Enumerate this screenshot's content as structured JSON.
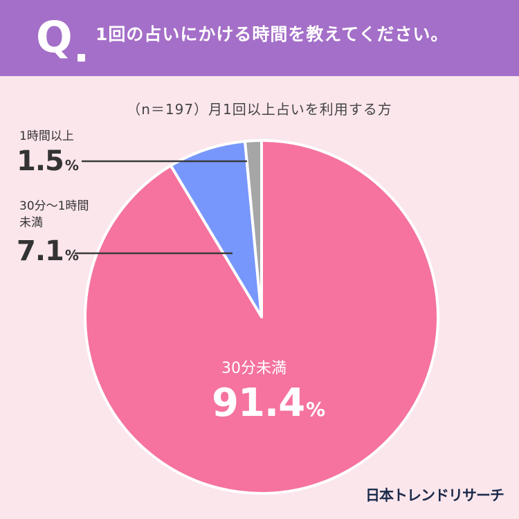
{
  "header": {
    "q_letter": "Q",
    "title": "1回の占いにかける時間を教えてください。"
  },
  "subtitle": "（n＝197）月1回以上占いを利用する方",
  "colors": {
    "background": "#fbe6ec",
    "header": "#a46fc8",
    "slice_main": "#f5739e",
    "slice_mid": "#7897fc",
    "slice_small": "#a6a6a6",
    "leader": "#3a3a3a"
  },
  "chart_data": {
    "type": "pie",
    "title": "",
    "slices": [
      {
        "label": "30分未満",
        "value": 91.4,
        "display": "91.4",
        "unit": "%"
      },
      {
        "label_lines": [
          "30分〜1時間",
          "未満"
        ],
        "value": 7.1,
        "display": "7.1",
        "unit": "%"
      },
      {
        "label": "1時間以上",
        "value": 1.5,
        "display": "1.5",
        "unit": "%"
      }
    ]
  },
  "footer": {
    "logo": "日本トレンドリサーチ"
  }
}
